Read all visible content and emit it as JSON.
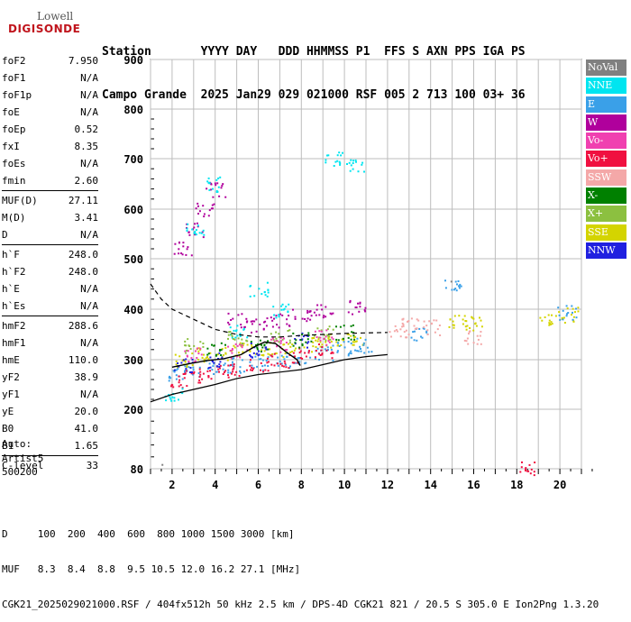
{
  "logo": {
    "line1": "Lowell",
    "line2": "DIGISONDE"
  },
  "header": {
    "row1": "Station       YYYY DAY   DDD HHMMSS P1  FFS S AXN PPS IGA PS",
    "row2": "Campo Grande  2025 Jan29 029 021000 RSF 005 2 713 100 03+ 36"
  },
  "params": {
    "group1": [
      {
        "k": "foF2",
        "v": "7.950"
      },
      {
        "k": "foF1",
        "v": "N/A"
      },
      {
        "k": "foF1p",
        "v": "N/A"
      },
      {
        "k": "foE",
        "v": "N/A"
      },
      {
        "k": "foEp",
        "v": "0.52"
      },
      {
        "k": "fxI",
        "v": "8.35"
      },
      {
        "k": "foEs",
        "v": "N/A"
      },
      {
        "k": "fmin",
        "v": "2.60"
      }
    ],
    "group2": [
      {
        "k": "MUF(D)",
        "v": "27.11"
      },
      {
        "k": "M(D)",
        "v": "3.41"
      },
      {
        "k": "D",
        "v": "N/A"
      }
    ],
    "group3": [
      {
        "k": "h`F",
        "v": "248.0"
      },
      {
        "k": "h`F2",
        "v": "248.0"
      },
      {
        "k": "h`E",
        "v": "N/A"
      },
      {
        "k": "h`Es",
        "v": "N/A"
      }
    ],
    "group4": [
      {
        "k": "hmF2",
        "v": "288.6"
      },
      {
        "k": "hmF1",
        "v": "N/A"
      },
      {
        "k": "hmE",
        "v": "110.0"
      },
      {
        "k": "yF2",
        "v": "38.9"
      },
      {
        "k": "yF1",
        "v": "N/A"
      },
      {
        "k": "yE",
        "v": "20.0"
      },
      {
        "k": "B0",
        "v": "41.0"
      },
      {
        "k": "B1",
        "v": "1.65"
      }
    ],
    "group5": [
      {
        "k": "C-level",
        "v": "33"
      }
    ]
  },
  "auto": {
    "line1": "Auto:",
    "line2": "Artist5",
    "line3": "500200"
  },
  "legend": [
    {
      "label": "NoVal",
      "color": "#808080"
    },
    {
      "label": "NNE",
      "color": "#00e5f0"
    },
    {
      "label": "E",
      "color": "#3aa0e8"
    },
    {
      "label": "W",
      "color": "#b0009c"
    },
    {
      "label": "Vo-",
      "color": "#f040b0"
    },
    {
      "label": "Vo+",
      "color": "#f01040"
    },
    {
      "label": "SSW",
      "color": "#f4a8a8"
    },
    {
      "label": "X-",
      "color": "#008000"
    },
    {
      "label": "X+",
      "color": "#8cc040"
    },
    {
      "label": "SSE",
      "color": "#d4d400"
    },
    {
      "label": "NNW",
      "color": "#2020e0"
    }
  ],
  "bottom": {
    "line1": "D     100  200  400  600  800 1000 1500 3000 [km]",
    "line2": "MUF   8.3  8.4  8.8  9.5 10.5 12.0 16.2 27.1 [MHz]",
    "line3": "CGK21_2025029021000.RSF / 404fx512h 50 kHz 2.5 km / DPS-4D CGK21 821 / 20.5 S 305.0 E Ion2Png 1.3.20"
  },
  "chart_data": {
    "type": "scatter",
    "title": "",
    "xlabel": "",
    "ylabel": "",
    "xlim": [
      1,
      21
    ],
    "ylim": [
      80,
      900
    ],
    "x_ticks": [
      2,
      4,
      6,
      8,
      10,
      12,
      14,
      16,
      18,
      20
    ],
    "y_ticks": [
      80,
      200,
      300,
      400,
      500,
      600,
      700,
      800,
      900
    ],
    "grid": true,
    "legend_position": "right",
    "series": [
      {
        "name": "SSE",
        "color": "#d4d400",
        "points": [
          [
            2.5,
            300
          ],
          [
            3.5,
            310
          ],
          [
            4.5,
            315
          ],
          [
            5.5,
            320
          ],
          [
            6.5,
            325
          ],
          [
            7.5,
            320
          ],
          [
            8.5,
            330
          ],
          [
            9.5,
            340
          ],
          [
            10.5,
            345
          ],
          [
            15.2,
            375
          ],
          [
            16,
            372
          ],
          [
            19.5,
            385
          ],
          [
            20.5,
            390
          ]
        ]
      },
      {
        "name": "E",
        "color": "#3aa0e8",
        "points": [
          [
            2.2,
            270
          ],
          [
            3,
            280
          ],
          [
            4,
            285
          ],
          [
            5,
            290
          ],
          [
            6,
            295
          ],
          [
            7,
            300
          ],
          [
            8,
            305
          ],
          [
            9,
            315
          ],
          [
            10,
            325
          ],
          [
            10.8,
            330
          ],
          [
            13.5,
            350
          ],
          [
            15,
            450
          ],
          [
            20.3,
            395
          ]
        ]
      },
      {
        "name": "W",
        "color": "#b0009c",
        "points": [
          [
            2.5,
            520
          ],
          [
            3,
            560
          ],
          [
            3.5,
            600
          ],
          [
            4,
            640
          ],
          [
            5,
            380
          ],
          [
            6,
            370
          ],
          [
            7,
            380
          ],
          [
            8,
            390
          ],
          [
            9,
            400
          ],
          [
            10.5,
            405
          ]
        ]
      },
      {
        "name": "Vo+",
        "color": "#f01040",
        "points": [
          [
            2.3,
            260
          ],
          [
            3,
            270
          ],
          [
            4,
            275
          ],
          [
            5,
            280
          ],
          [
            6,
            290
          ],
          [
            7,
            300
          ],
          [
            8,
            310
          ],
          [
            9,
            320
          ],
          [
            18.5,
            80
          ]
        ]
      },
      {
        "name": "NNE",
        "color": "#00e5f0",
        "points": [
          [
            2,
            230
          ],
          [
            3,
            560
          ],
          [
            4,
            650
          ],
          [
            5,
            360
          ],
          [
            6,
            440
          ],
          [
            7,
            400
          ],
          [
            9.5,
            700
          ],
          [
            10.5,
            690
          ]
        ]
      },
      {
        "name": "SSW",
        "color": "#f4a8a8",
        "points": [
          [
            12.5,
            360
          ],
          [
            13,
            370
          ],
          [
            14,
            365
          ],
          [
            16,
            345
          ]
        ]
      },
      {
        "name": "NNW",
        "color": "#2020e0",
        "points": [
          [
            2.5,
            290
          ],
          [
            4,
            300
          ],
          [
            6,
            320
          ],
          [
            8,
            340
          ]
        ]
      },
      {
        "name": "X+",
        "color": "#8cc040",
        "points": [
          [
            3,
            330
          ],
          [
            5,
            345
          ],
          [
            7,
            350
          ],
          [
            9,
            355
          ]
        ]
      },
      {
        "name": "X-",
        "color": "#008000",
        "points": [
          [
            4,
            320
          ],
          [
            6,
            330
          ],
          [
            8,
            340
          ],
          [
            10,
            355
          ]
        ]
      },
      {
        "name": "Vo-",
        "color": "#f040b0",
        "points": [
          [
            3,
            310
          ],
          [
            5,
            320
          ],
          [
            7,
            330
          ],
          [
            9,
            345
          ]
        ]
      },
      {
        "name": "NoVal",
        "color": "#808080",
        "points": [
          [
            1,
            555
          ],
          [
            1.1,
            80
          ],
          [
            15.3,
            450
          ]
        ]
      }
    ],
    "profile_curve": [
      [
        2,
        285
      ],
      [
        2.8,
        292
      ],
      [
        3.6,
        298
      ],
      [
        4.4,
        302
      ],
      [
        5.2,
        310
      ],
      [
        5.8,
        325
      ],
      [
        6.3,
        335
      ],
      [
        6.8,
        332
      ],
      [
        7.3,
        315
      ],
      [
        7.8,
        300
      ],
      [
        7.95,
        288
      ]
    ],
    "dashed_curve": [
      [
        1,
        450
      ],
      [
        1.5,
        420
      ],
      [
        2,
        400
      ],
      [
        3,
        380
      ],
      [
        4,
        360
      ],
      [
        5,
        350
      ],
      [
        6,
        345
      ],
      [
        7,
        345
      ],
      [
        8,
        348
      ],
      [
        9,
        350
      ],
      [
        10,
        352
      ],
      [
        11,
        353
      ],
      [
        12,
        354
      ]
    ],
    "lower_curve": [
      [
        1,
        215
      ],
      [
        2,
        230
      ],
      [
        3,
        240
      ],
      [
        4,
        250
      ],
      [
        5,
        262
      ],
      [
        6,
        270
      ],
      [
        7,
        275
      ],
      [
        8,
        280
      ],
      [
        9,
        290
      ],
      [
        10,
        300
      ],
      [
        11,
        306
      ],
      [
        12,
        310
      ]
    ]
  }
}
